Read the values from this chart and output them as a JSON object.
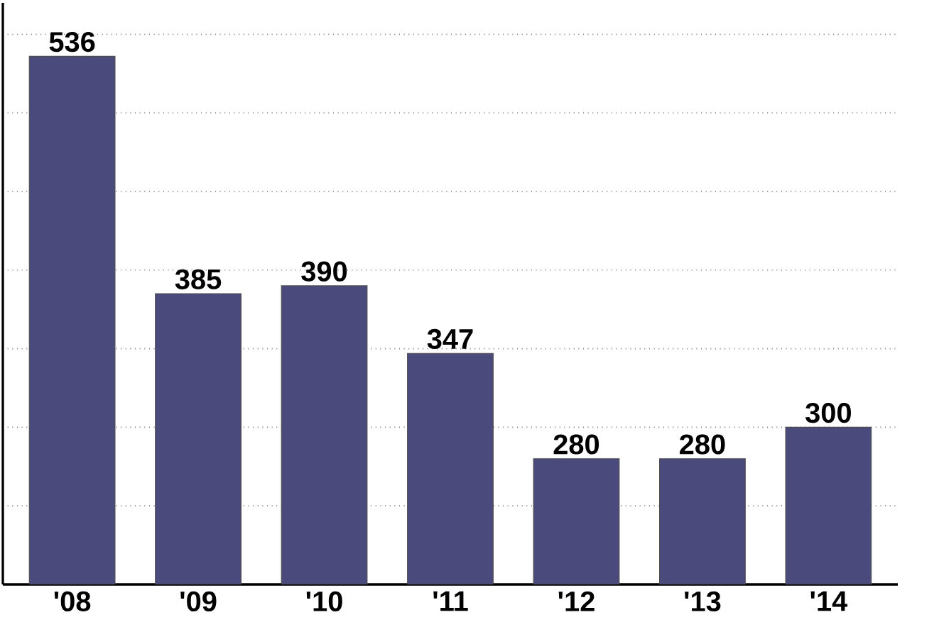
{
  "chart_data": {
    "type": "bar",
    "categories": [
      "'08",
      "'09",
      "'10",
      "'11",
      "'12",
      "'13",
      "'14"
    ],
    "values": [
      536,
      385,
      390,
      347,
      280,
      280,
      300
    ],
    "color": "#4b4a7c",
    "data_labels": true,
    "grid": "y",
    "ylim": [
      200,
      570
    ],
    "yticks": [
      {
        "value": 250,
        "label": null
      },
      {
        "value": 300,
        "label": null
      },
      {
        "value": 350,
        "label": null
      },
      {
        "value": 400,
        "label": null
      },
      {
        "value": 450,
        "label": null
      },
      {
        "value": 500,
        "label": null
      },
      {
        "value": 550,
        "label": null
      }
    ],
    "tick_labels": "x"
  }
}
